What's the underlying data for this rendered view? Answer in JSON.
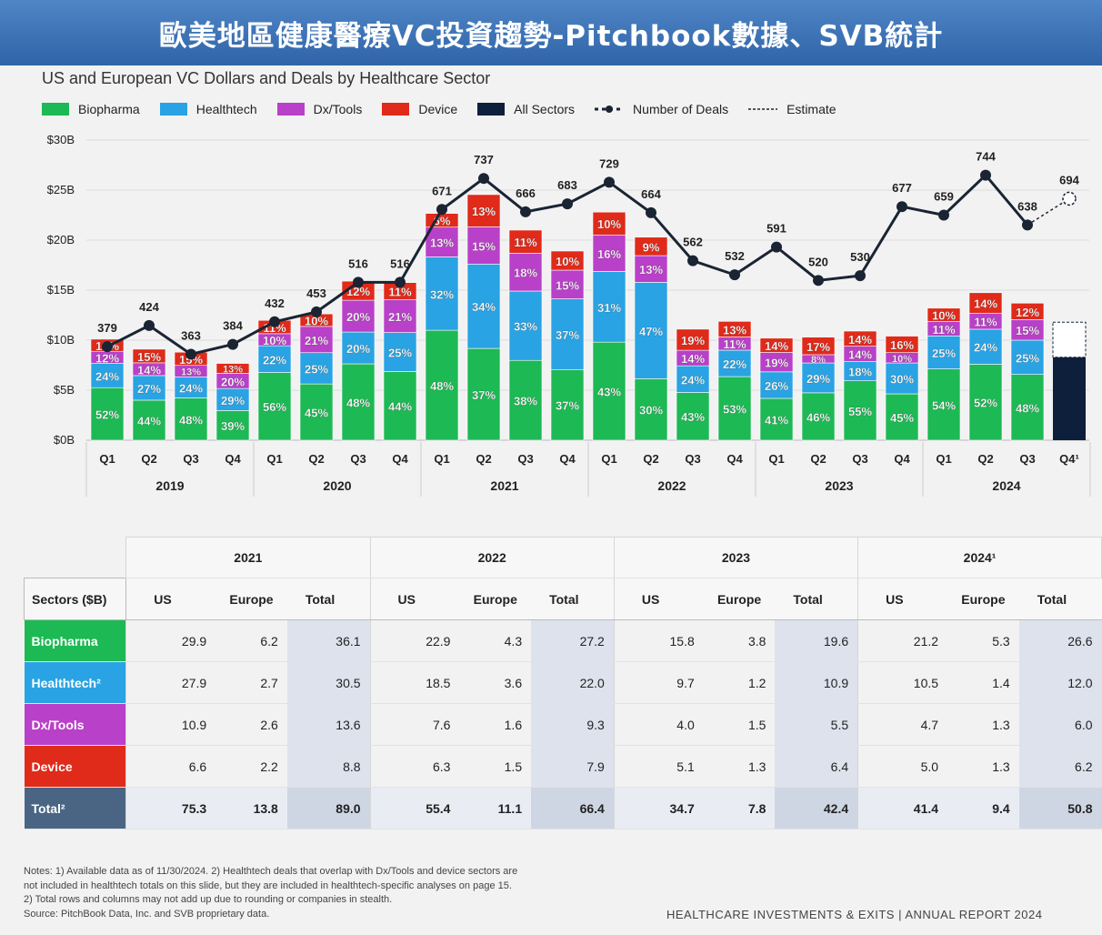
{
  "banner_title": "歐美地區健康醫療VC投資趨勢-Pitchbook數據、SVB統計",
  "chart_data": {
    "type": "bar",
    "title": "US and European VC Dollars and Deals by Healthcare Sector",
    "legend": [
      "Biopharma",
      "Healthtech",
      "Dx/Tools",
      "Device",
      "All Sectors",
      "Number of Deals",
      "Estimate"
    ],
    "colors": {
      "Biopharma": "#1db954",
      "Healthtech": "#29a3e3",
      "Dx/Tools": "#b940c8",
      "Device": "#e02a1a",
      "All Sectors": "#0e1f3c"
    },
    "y_tick_labels": [
      "$0B",
      "$5B",
      "$10B",
      "$15B",
      "$20B",
      "$25B",
      "$30B"
    ],
    "ylim": [
      0,
      30
    ],
    "quarters": [
      "Q1",
      "Q2",
      "Q3",
      "Q4",
      "Q1",
      "Q2",
      "Q3",
      "Q4",
      "Q1",
      "Q2",
      "Q3",
      "Q4",
      "Q1",
      "Q2",
      "Q3",
      "Q4",
      "Q1",
      "Q2",
      "Q3",
      "Q4",
      "Q1",
      "Q2",
      "Q3",
      "Q4¹"
    ],
    "years": [
      "2019",
      "2020",
      "2021",
      "2022",
      "2023",
      "2024"
    ],
    "bar_totals": [
      10.1,
      9.1,
      8.8,
      7.6,
      12.1,
      12.5,
      15.9,
      15.6,
      22.9,
      24.8,
      21.0,
      19.1,
      22.8,
      20.5,
      11.1,
      12.0,
      10.2,
      10.3,
      10.8,
      10.3,
      13.2,
      14.6,
      13.7,
      11.8
    ],
    "shares": {
      "Biopharma": [
        "52%",
        "44%",
        "48%",
        "39%",
        "56%",
        "45%",
        "48%",
        "44%",
        "48%",
        "37%",
        "38%",
        "37%",
        "43%",
        "30%",
        "43%",
        "53%",
        "41%",
        "46%",
        "55%",
        "45%",
        "54%",
        "52%",
        "48%",
        ""
      ],
      "Healthtech": [
        "24%",
        "27%",
        "24%",
        "29%",
        "22%",
        "25%",
        "20%",
        "25%",
        "32%",
        "34%",
        "33%",
        "37%",
        "31%",
        "47%",
        "24%",
        "22%",
        "26%",
        "29%",
        "18%",
        "30%",
        "25%",
        "24%",
        "25%",
        ""
      ],
      "Dx/Tools": [
        "12%",
        "14%",
        "13%",
        "20%",
        "10%",
        "21%",
        "20%",
        "21%",
        "13%",
        "15%",
        "18%",
        "15%",
        "16%",
        "13%",
        "14%",
        "11%",
        "19%",
        "8%",
        "14%",
        "10%",
        "11%",
        "11%",
        "15%",
        ""
      ],
      "Device": [
        "12%",
        "15%",
        "15%",
        "13%",
        "11%",
        "10%",
        "12%",
        "11%",
        "6%",
        "13%",
        "11%",
        "10%",
        "10%",
        "9%",
        "19%",
        "13%",
        "14%",
        "17%",
        "14%",
        "16%",
        "10%",
        "14%",
        "12%",
        ""
      ]
    },
    "all_sectors_q4_2024": {
      "actual": 8.3,
      "estimate": 11.8
    },
    "deals": [
      379,
      424,
      363,
      384,
      432,
      453,
      516,
      516,
      671,
      737,
      666,
      683,
      729,
      664,
      562,
      532,
      591,
      520,
      530,
      677,
      659,
      744,
      638,
      694
    ],
    "deal_axis": [
      0,
      800
    ]
  },
  "table": {
    "years": [
      "2021",
      "2022",
      "2023",
      "2024¹"
    ],
    "caption": "Sectors ($B)",
    "subheaders": [
      "US",
      "Europe",
      "Total"
    ],
    "rows": [
      {
        "label": "Biopharma",
        "color": "#1db954",
        "values": [
          "29.9",
          "6.2",
          "36.1",
          "22.9",
          "4.3",
          "27.2",
          "15.8",
          "3.8",
          "19.6",
          "21.2",
          "5.3",
          "26.6"
        ]
      },
      {
        "label": "Healthtech²",
        "color": "#29a3e3",
        "values": [
          "27.9",
          "2.7",
          "30.5",
          "18.5",
          "3.6",
          "22.0",
          "9.7",
          "1.2",
          "10.9",
          "10.5",
          "1.4",
          "12.0"
        ]
      },
      {
        "label": "Dx/Tools",
        "color": "#b940c8",
        "values": [
          "10.9",
          "2.6",
          "13.6",
          "7.6",
          "1.6",
          "9.3",
          "4.0",
          "1.5",
          "5.5",
          "4.7",
          "1.3",
          "6.0"
        ]
      },
      {
        "label": "Device",
        "color": "#e02a1a",
        "values": [
          "6.6",
          "2.2",
          "8.8",
          "6.3",
          "1.5",
          "7.9",
          "5.1",
          "1.3",
          "6.4",
          "5.0",
          "1.3",
          "6.2"
        ]
      },
      {
        "label": "Total²",
        "color": "#4a6584",
        "values": [
          "75.3",
          "13.8",
          "89.0",
          "55.4",
          "11.1",
          "66.4",
          "34.7",
          "7.8",
          "42.4",
          "41.4",
          "9.4",
          "50.8"
        ]
      }
    ]
  },
  "notes": [
    "Notes: 1) Available data as of 11/30/2024. 2) Healthtech deals that overlap with Dx/Tools and device sectors are",
    "not included in healthtech totals on this slide, but they are included in healthtech-specific analyses on page 15.",
    "2) Total rows and columns may not add up due to rounding or companies in stealth.",
    "Source: PitchBook Data, Inc. and SVB proprietary data."
  ],
  "footer": "HEALTHCARE INVESTMENTS & EXITS | ANNUAL REPORT 2024"
}
